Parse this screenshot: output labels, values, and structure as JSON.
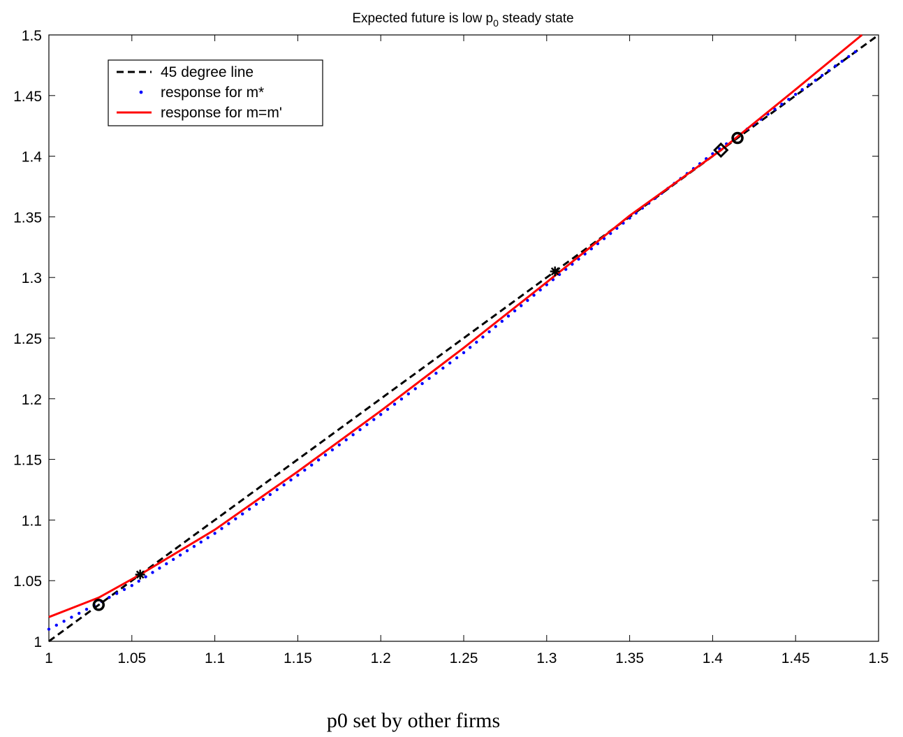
{
  "chart_data": {
    "type": "line",
    "title": "Expected future is low p",
    "title_subscript": "0",
    "title_suffix": " steady state",
    "xlabel": "p0 set by other firms",
    "ylabel": "",
    "xlim": [
      1,
      1.5
    ],
    "ylim": [
      1,
      1.5
    ],
    "xticks": [
      1,
      1.05,
      1.1,
      1.15,
      1.2,
      1.25,
      1.3,
      1.35,
      1.4,
      1.45,
      1.5
    ],
    "xtick_labels": [
      "1",
      "1.05",
      "1.1",
      "1.15",
      "1.2",
      "1.25",
      "1.3",
      "1.35",
      "1.4",
      "1.45",
      "1.5"
    ],
    "yticks": [
      1,
      1.05,
      1.1,
      1.15,
      1.2,
      1.25,
      1.3,
      1.35,
      1.4,
      1.45,
      1.5
    ],
    "ytick_labels": [
      "1",
      "1.05",
      "1.1",
      "1.15",
      "1.2",
      "1.25",
      "1.3",
      "1.35",
      "1.4",
      "1.45",
      "1.5"
    ],
    "grid": false,
    "legend_position": "top-left",
    "series": [
      {
        "name": "45 degree line",
        "style": "dashed",
        "color": "#000000",
        "x": [
          1,
          1.5
        ],
        "y": [
          1,
          1.5
        ]
      },
      {
        "name": "response for m*",
        "style": "dotted",
        "color": "#0000ff",
        "x": [
          1.0,
          1.05,
          1.1,
          1.15,
          1.2,
          1.25,
          1.3,
          1.35,
          1.4,
          1.45,
          1.49
        ],
        "y": [
          1.01,
          1.046,
          1.089,
          1.137,
          1.187,
          1.238,
          1.294,
          1.349,
          1.402,
          1.451,
          1.49
        ]
      },
      {
        "name": "response for m=m'",
        "style": "solid",
        "color": "#ff0000",
        "x": [
          1.0,
          1.03,
          1.055,
          1.1,
          1.15,
          1.2,
          1.25,
          1.3,
          1.35,
          1.405,
          1.45,
          1.49
        ],
        "y": [
          1.02,
          1.036,
          1.055,
          1.092,
          1.14,
          1.19,
          1.242,
          1.296,
          1.351,
          1.405,
          1.455,
          1.5
        ]
      }
    ],
    "markers": [
      {
        "name": "circle-marker",
        "shape": "circle",
        "x": 1.03,
        "y": 1.03
      },
      {
        "name": "asterisk-marker",
        "shape": "asterisk",
        "x": 1.055,
        "y": 1.055
      },
      {
        "name": "asterisk-marker",
        "shape": "asterisk",
        "x": 1.305,
        "y": 1.305
      },
      {
        "name": "diamond-marker",
        "shape": "diamond",
        "x": 1.405,
        "y": 1.405
      },
      {
        "name": "circle-marker",
        "shape": "circle",
        "x": 1.415,
        "y": 1.415
      }
    ]
  }
}
